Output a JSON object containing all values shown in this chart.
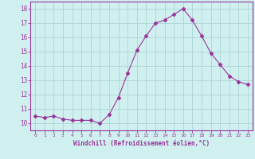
{
  "x": [
    0,
    1,
    2,
    3,
    4,
    5,
    6,
    7,
    8,
    9,
    10,
    11,
    12,
    13,
    14,
    15,
    16,
    17,
    18,
    19,
    20,
    21,
    22,
    23
  ],
  "y": [
    10.5,
    10.4,
    10.5,
    10.3,
    10.2,
    10.2,
    10.2,
    10.0,
    10.6,
    11.8,
    13.5,
    15.1,
    16.1,
    17.0,
    17.2,
    17.6,
    18.0,
    17.2,
    16.1,
    14.9,
    14.1,
    13.3,
    12.9,
    12.7
  ],
  "line_color": "#993399",
  "marker": "D",
  "marker_size": 2.5,
  "bg_color": "#d0f0f0",
  "grid_color": "#b0d8d8",
  "xlabel": "Windchill (Refroidissement éolien,°C)",
  "xlabel_color": "#993399",
  "tick_color": "#993399",
  "yticks": [
    10,
    11,
    12,
    13,
    14,
    15,
    16,
    17,
    18
  ],
  "ylim": [
    9.5,
    18.5
  ],
  "xlim": [
    -0.5,
    23.5
  ]
}
